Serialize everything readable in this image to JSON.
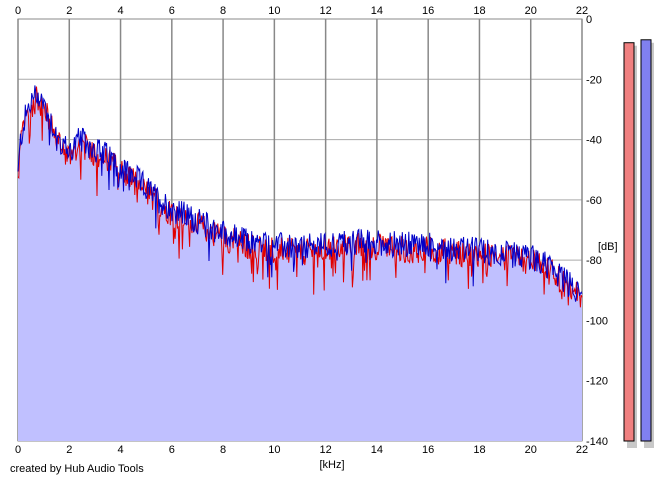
{
  "credit": "created by Hub Audio Tools",
  "chart_data": {
    "type": "area",
    "title": "",
    "xlabel": "[kHz]",
    "ylabel": "[dB]",
    "xlim": [
      0,
      22
    ],
    "ylim": [
      -140,
      0
    ],
    "x_ticks": [
      0,
      2,
      4,
      6,
      8,
      10,
      12,
      14,
      16,
      18,
      20,
      22
    ],
    "x_tick_labels": [
      "0",
      "2",
      "4",
      "6",
      "8",
      "10",
      "12",
      "14",
      "16",
      "18",
      "20",
      "22"
    ],
    "y_ticks": [
      0,
      -20,
      -40,
      -60,
      -80,
      -100,
      -120,
      -140
    ],
    "y_tick_labels": [
      "0",
      "-20",
      "-40",
      "-60",
      "-80",
      "-100",
      "-120",
      "-140"
    ],
    "grid": true,
    "colors": {
      "fill": "#c0c0ff",
      "left_channel": "#e00000",
      "right_channel": "#0000c8",
      "grid": "#aaaaaa",
      "meter_left": "#f08080",
      "meter_right": "#8080f0"
    },
    "envelope": {
      "x": [
        0,
        0.1,
        0.3,
        0.6,
        0.8,
        1.0,
        1.3,
        1.6,
        2.0,
        2.4,
        2.8,
        3.2,
        3.6,
        4.0,
        4.5,
        5.0,
        5.5,
        6.0,
        6.5,
        7.0,
        7.5,
        8.0,
        9.0,
        10.0,
        11.0,
        12.0,
        13.0,
        14.0,
        15.0,
        16.0,
        17.0,
        18.0,
        19.0,
        20.0,
        20.5,
        21.0,
        21.5,
        22.0
      ],
      "y": [
        -52,
        -40,
        -32,
        -26,
        -25,
        -28,
        -34,
        -40,
        -44,
        -40,
        -42,
        -44,
        -46,
        -49,
        -52,
        -56,
        -60,
        -63,
        -65,
        -67,
        -69,
        -71,
        -74,
        -75,
        -76,
        -75,
        -74,
        -74,
        -75,
        -75,
        -76,
        -77,
        -78,
        -79,
        -81,
        -84,
        -88,
        -92
      ]
    },
    "meters": {
      "left_peak_db": -4,
      "right_peak_db": -3
    }
  }
}
